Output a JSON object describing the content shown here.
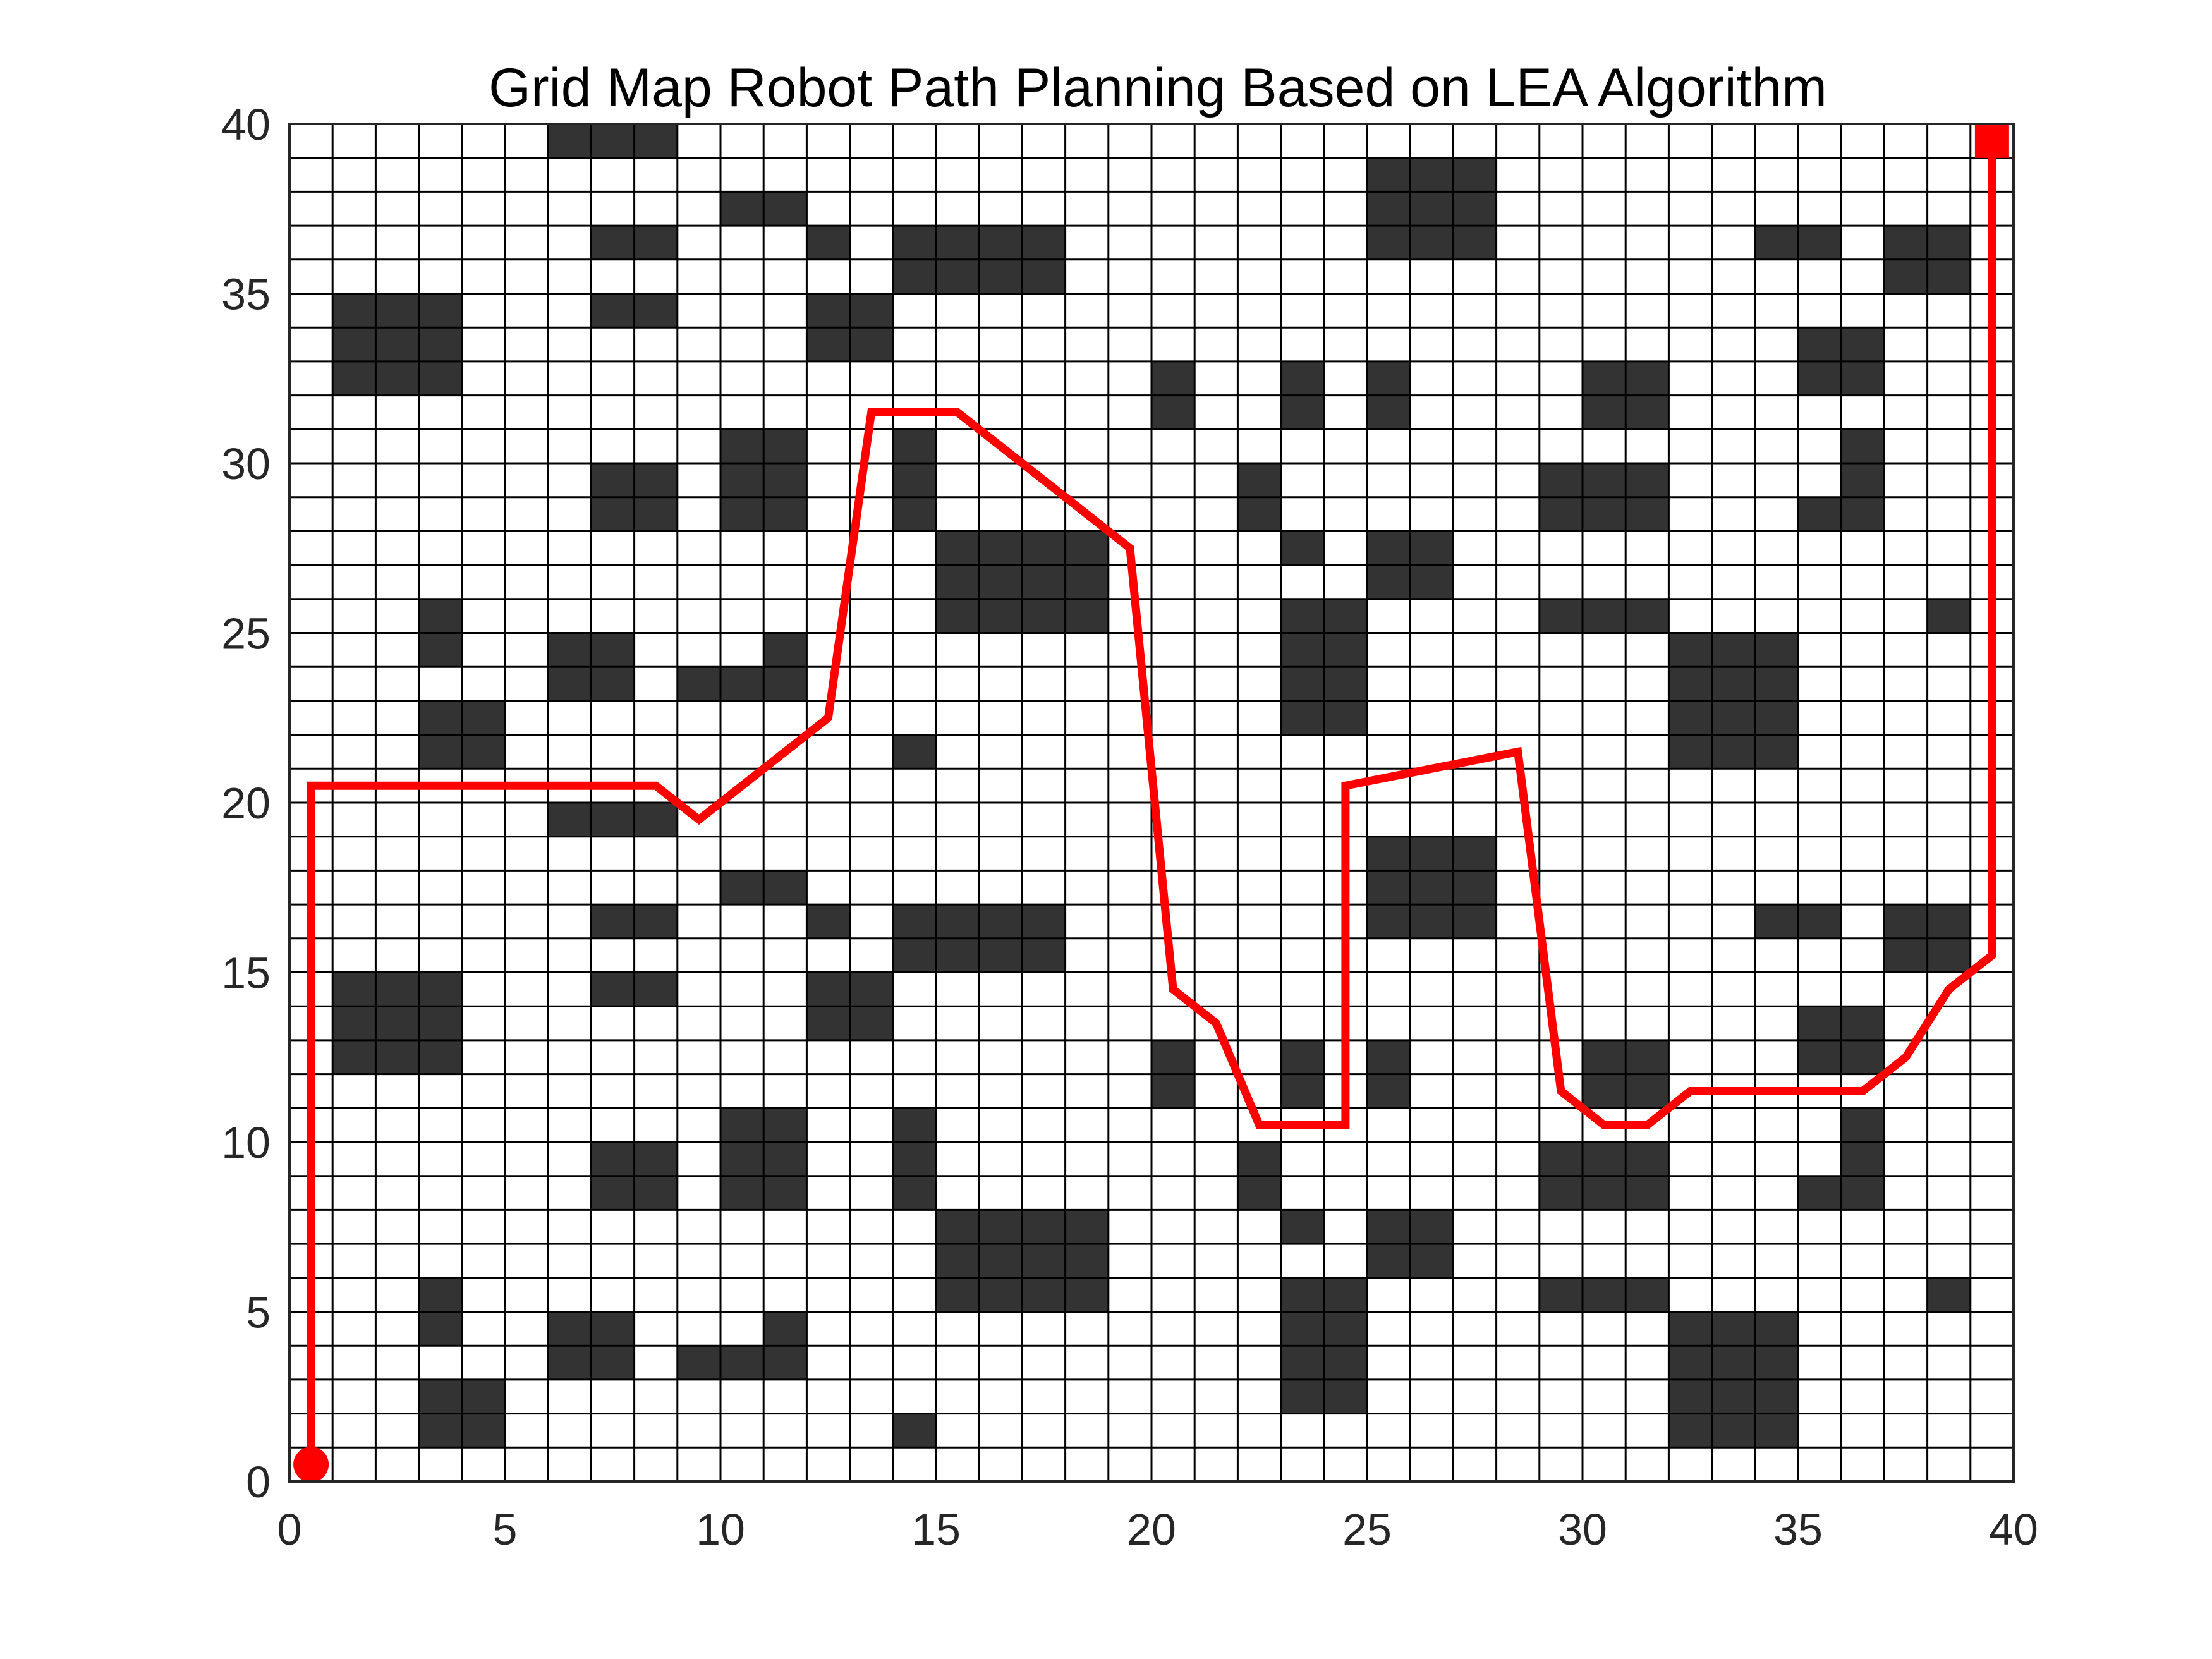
{
  "chart_data": {
    "type": "heatmap",
    "title": "Grid Map Robot Path Planning Based on LEA Algorithm",
    "xlabel": "",
    "ylabel": "",
    "xlim": [
      0,
      40
    ],
    "ylim": [
      0,
      40
    ],
    "xticks": [
      "0",
      "5",
      "10",
      "15",
      "20",
      "25",
      "30",
      "35",
      "40"
    ],
    "yticks": [
      "0",
      "5",
      "10",
      "15",
      "20",
      "25",
      "30",
      "35",
      "40"
    ],
    "grid": true,
    "grid_size": [
      40,
      40
    ],
    "obstacle_color": "#333333",
    "free_color": "#ffffff",
    "path_color": "#ff0000",
    "obstacles": [
      [
        6,
        39,
        3,
        1
      ],
      [
        10,
        37,
        2,
        1
      ],
      [
        7,
        36,
        2,
        1
      ],
      [
        12,
        36,
        1,
        1
      ],
      [
        14,
        35,
        4,
        2
      ],
      [
        25,
        36,
        3,
        3
      ],
      [
        34,
        36,
        2,
        1
      ],
      [
        37,
        35,
        2,
        2
      ],
      [
        1,
        32,
        3,
        3
      ],
      [
        7,
        34,
        2,
        1
      ],
      [
        12,
        33,
        2,
        2
      ],
      [
        20,
        31,
        1,
        2
      ],
      [
        23,
        31,
        1,
        2
      ],
      [
        25,
        31,
        1,
        2
      ],
      [
        30,
        31,
        2,
        2
      ],
      [
        35,
        32,
        2,
        2
      ],
      [
        7,
        28,
        2,
        2
      ],
      [
        10,
        28,
        2,
        3
      ],
      [
        14,
        28,
        1,
        3
      ],
      [
        22,
        28,
        1,
        2
      ],
      [
        29,
        28,
        3,
        2
      ],
      [
        36,
        28,
        1,
        3
      ],
      [
        35,
        28,
        1,
        1
      ],
      [
        15,
        25,
        4,
        3
      ],
      [
        23,
        27,
        1,
        1
      ],
      [
        25,
        26,
        2,
        2
      ],
      [
        3,
        24,
        1,
        2
      ],
      [
        6,
        23,
        2,
        2
      ],
      [
        9,
        23,
        2,
        1
      ],
      [
        11,
        23,
        1,
        2
      ],
      [
        29,
        25,
        3,
        1
      ],
      [
        38,
        25,
        1,
        1
      ],
      [
        23,
        22,
        2,
        4
      ],
      [
        32,
        21,
        3,
        4
      ],
      [
        3,
        21,
        2,
        2
      ],
      [
        14,
        21,
        1,
        1
      ],
      [
        6,
        19,
        3,
        1
      ],
      [
        10,
        17,
        2,
        1
      ],
      [
        7,
        16,
        2,
        1
      ],
      [
        12,
        16,
        1,
        1
      ],
      [
        14,
        15,
        4,
        2
      ],
      [
        25,
        16,
        3,
        3
      ],
      [
        34,
        16,
        2,
        1
      ],
      [
        37,
        15,
        2,
        2
      ],
      [
        1,
        12,
        3,
        3
      ],
      [
        7,
        14,
        2,
        1
      ],
      [
        12,
        13,
        2,
        2
      ],
      [
        20,
        11,
        1,
        2
      ],
      [
        23,
        11,
        1,
        2
      ],
      [
        25,
        11,
        1,
        2
      ],
      [
        30,
        11,
        2,
        2
      ],
      [
        35,
        12,
        2,
        2
      ],
      [
        7,
        8,
        2,
        2
      ],
      [
        10,
        8,
        2,
        3
      ],
      [
        14,
        8,
        1,
        3
      ],
      [
        22,
        8,
        1,
        2
      ],
      [
        29,
        8,
        3,
        2
      ],
      [
        36,
        8,
        1,
        3
      ],
      [
        35,
        8,
        1,
        1
      ],
      [
        15,
        5,
        4,
        3
      ],
      [
        23,
        7,
        1,
        1
      ],
      [
        25,
        6,
        2,
        2
      ],
      [
        3,
        4,
        1,
        2
      ],
      [
        6,
        3,
        2,
        2
      ],
      [
        9,
        3,
        2,
        1
      ],
      [
        11,
        3,
        1,
        2
      ],
      [
        29,
        5,
        3,
        1
      ],
      [
        38,
        5,
        1,
        1
      ],
      [
        23,
        2,
        2,
        4
      ],
      [
        32,
        1,
        3,
        4
      ],
      [
        3,
        1,
        2,
        2
      ],
      [
        14,
        1,
        1,
        1
      ]
    ],
    "path": [
      [
        0.5,
        0.5
      ],
      [
        0.5,
        20.5
      ],
      [
        8.5,
        20.5
      ],
      [
        9.5,
        19.5
      ],
      [
        12.5,
        22.5
      ],
      [
        13.5,
        31.5
      ],
      [
        15.5,
        31.5
      ],
      [
        17.5,
        29.5
      ],
      [
        19.5,
        27.5
      ],
      [
        20.5,
        14.5
      ],
      [
        21.5,
        13.5
      ],
      [
        22.5,
        10.5
      ],
      [
        24.5,
        10.5
      ],
      [
        24.5,
        20.5
      ],
      [
        26.5,
        21
      ],
      [
        28.5,
        21.5
      ],
      [
        29.5,
        11.5
      ],
      [
        30.5,
        10.5
      ],
      [
        31.5,
        10.5
      ],
      [
        32.5,
        11.5
      ],
      [
        36.5,
        11.5
      ],
      [
        37.5,
        12.5
      ],
      [
        38.5,
        14.5
      ],
      [
        39.5,
        15.5
      ],
      [
        39.5,
        39.5
      ]
    ],
    "start": [
      0.5,
      0.5
    ],
    "goal": [
      39.5,
      39.5
    ]
  }
}
